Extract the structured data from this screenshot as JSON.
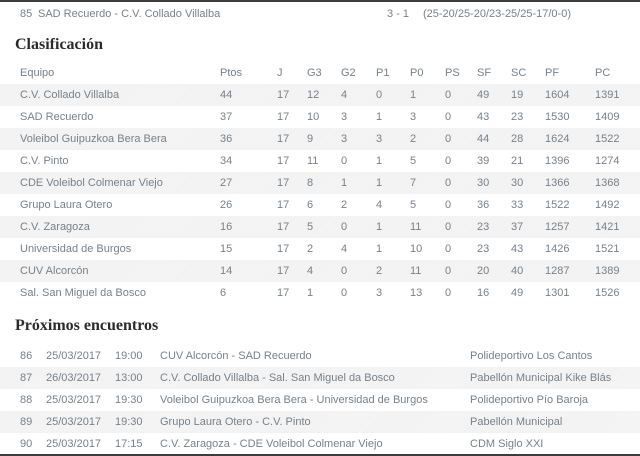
{
  "colors": {
    "page_bg": "#ffffff",
    "border": "#3c3c3c",
    "body_text": "#76818b",
    "heading_text": "#2b2b2b",
    "stripe": "#f2f2f2"
  },
  "result_match": {
    "num": "85",
    "teams": "SAD Recuerdo - C.V. Collado Villalba",
    "score": "3 - 1",
    "sets": "(25-20/25-20/23-25/25-17/0-0)"
  },
  "standings": {
    "title": "Clasificación",
    "columns": [
      "Equipo",
      "Ptos",
      "J",
      "G3",
      "G2",
      "P1",
      "P0",
      "PS",
      "SF",
      "SC",
      "PF",
      "PC"
    ],
    "rows": [
      {
        "team": "C.V. Collado Villalba",
        "ptos": "44",
        "j": "17",
        "g3": "12",
        "g2": "4",
        "p1": "0",
        "p0": "1",
        "ps": "0",
        "sf": "49",
        "sc": "19",
        "pf": "1604",
        "pc": "1391"
      },
      {
        "team": "SAD Recuerdo",
        "ptos": "37",
        "j": "17",
        "g3": "10",
        "g2": "3",
        "p1": "1",
        "p0": "3",
        "ps": "0",
        "sf": "43",
        "sc": "23",
        "pf": "1530",
        "pc": "1409"
      },
      {
        "team": "Voleibol Guipuzkoa Bera Bera",
        "ptos": "36",
        "j": "17",
        "g3": "9",
        "g2": "3",
        "p1": "3",
        "p0": "2",
        "ps": "0",
        "sf": "44",
        "sc": "28",
        "pf": "1624",
        "pc": "1522"
      },
      {
        "team": "C.V. Pinto",
        "ptos": "34",
        "j": "17",
        "g3": "11",
        "g2": "0",
        "p1": "1",
        "p0": "5",
        "ps": "0",
        "sf": "39",
        "sc": "21",
        "pf": "1396",
        "pc": "1274"
      },
      {
        "team": "CDE Voleibol Colmenar Viejo",
        "ptos": "27",
        "j": "17",
        "g3": "8",
        "g2": "1",
        "p1": "1",
        "p0": "7",
        "ps": "0",
        "sf": "30",
        "sc": "30",
        "pf": "1366",
        "pc": "1368"
      },
      {
        "team": "Grupo Laura Otero",
        "ptos": "26",
        "j": "17",
        "g3": "6",
        "g2": "2",
        "p1": "4",
        "p0": "5",
        "ps": "0",
        "sf": "36",
        "sc": "33",
        "pf": "1522",
        "pc": "1492"
      },
      {
        "team": "C.V. Zaragoza",
        "ptos": "16",
        "j": "17",
        "g3": "5",
        "g2": "0",
        "p1": "1",
        "p0": "11",
        "ps": "0",
        "sf": "23",
        "sc": "37",
        "pf": "1257",
        "pc": "1421"
      },
      {
        "team": "Universidad de Burgos",
        "ptos": "15",
        "j": "17",
        "g3": "2",
        "g2": "4",
        "p1": "1",
        "p0": "10",
        "ps": "0",
        "sf": "23",
        "sc": "43",
        "pf": "1426",
        "pc": "1521"
      },
      {
        "team": "CUV Alcorcón",
        "ptos": "14",
        "j": "17",
        "g3": "4",
        "g2": "0",
        "p1": "2",
        "p0": "11",
        "ps": "0",
        "sf": "20",
        "sc": "40",
        "pf": "1287",
        "pc": "1389"
      },
      {
        "team": "Sal. San Miguel da Bosco",
        "ptos": "6",
        "j": "17",
        "g3": "1",
        "g2": "0",
        "p1": "3",
        "p0": "13",
        "ps": "0",
        "sf": "16",
        "sc": "49",
        "pf": "1301",
        "pc": "1526"
      }
    ]
  },
  "fixtures": {
    "title": "Próximos encuentros",
    "rows": [
      {
        "num": "86",
        "date": "25/03/2017",
        "time": "19:00",
        "match": "CUV Alcorcón - SAD Recuerdo",
        "venue": "Polideportivo Los Cantos"
      },
      {
        "num": "87",
        "date": "26/03/2017",
        "time": "13:00",
        "match": "C.V. Collado Villalba - Sal. San Miguel da Bosco",
        "venue": "Pabellón Municipal Kike Blás"
      },
      {
        "num": "88",
        "date": "25/03/2017",
        "time": "19:30",
        "match": "Voleibol Guipuzkoa Bera Bera - Universidad de Burgos",
        "venue": "Polideportivo Pío Baroja"
      },
      {
        "num": "89",
        "date": "25/03/2017",
        "time": "19:30",
        "match": "Grupo Laura Otero - C.V. Pinto",
        "venue": "Pabellón Municipal"
      },
      {
        "num": "90",
        "date": "25/03/2017",
        "time": "17:15",
        "match": "C.V. Zaragoza - CDE Voleibol Colmenar Viejo",
        "venue": "CDM Siglo XXI"
      }
    ]
  }
}
